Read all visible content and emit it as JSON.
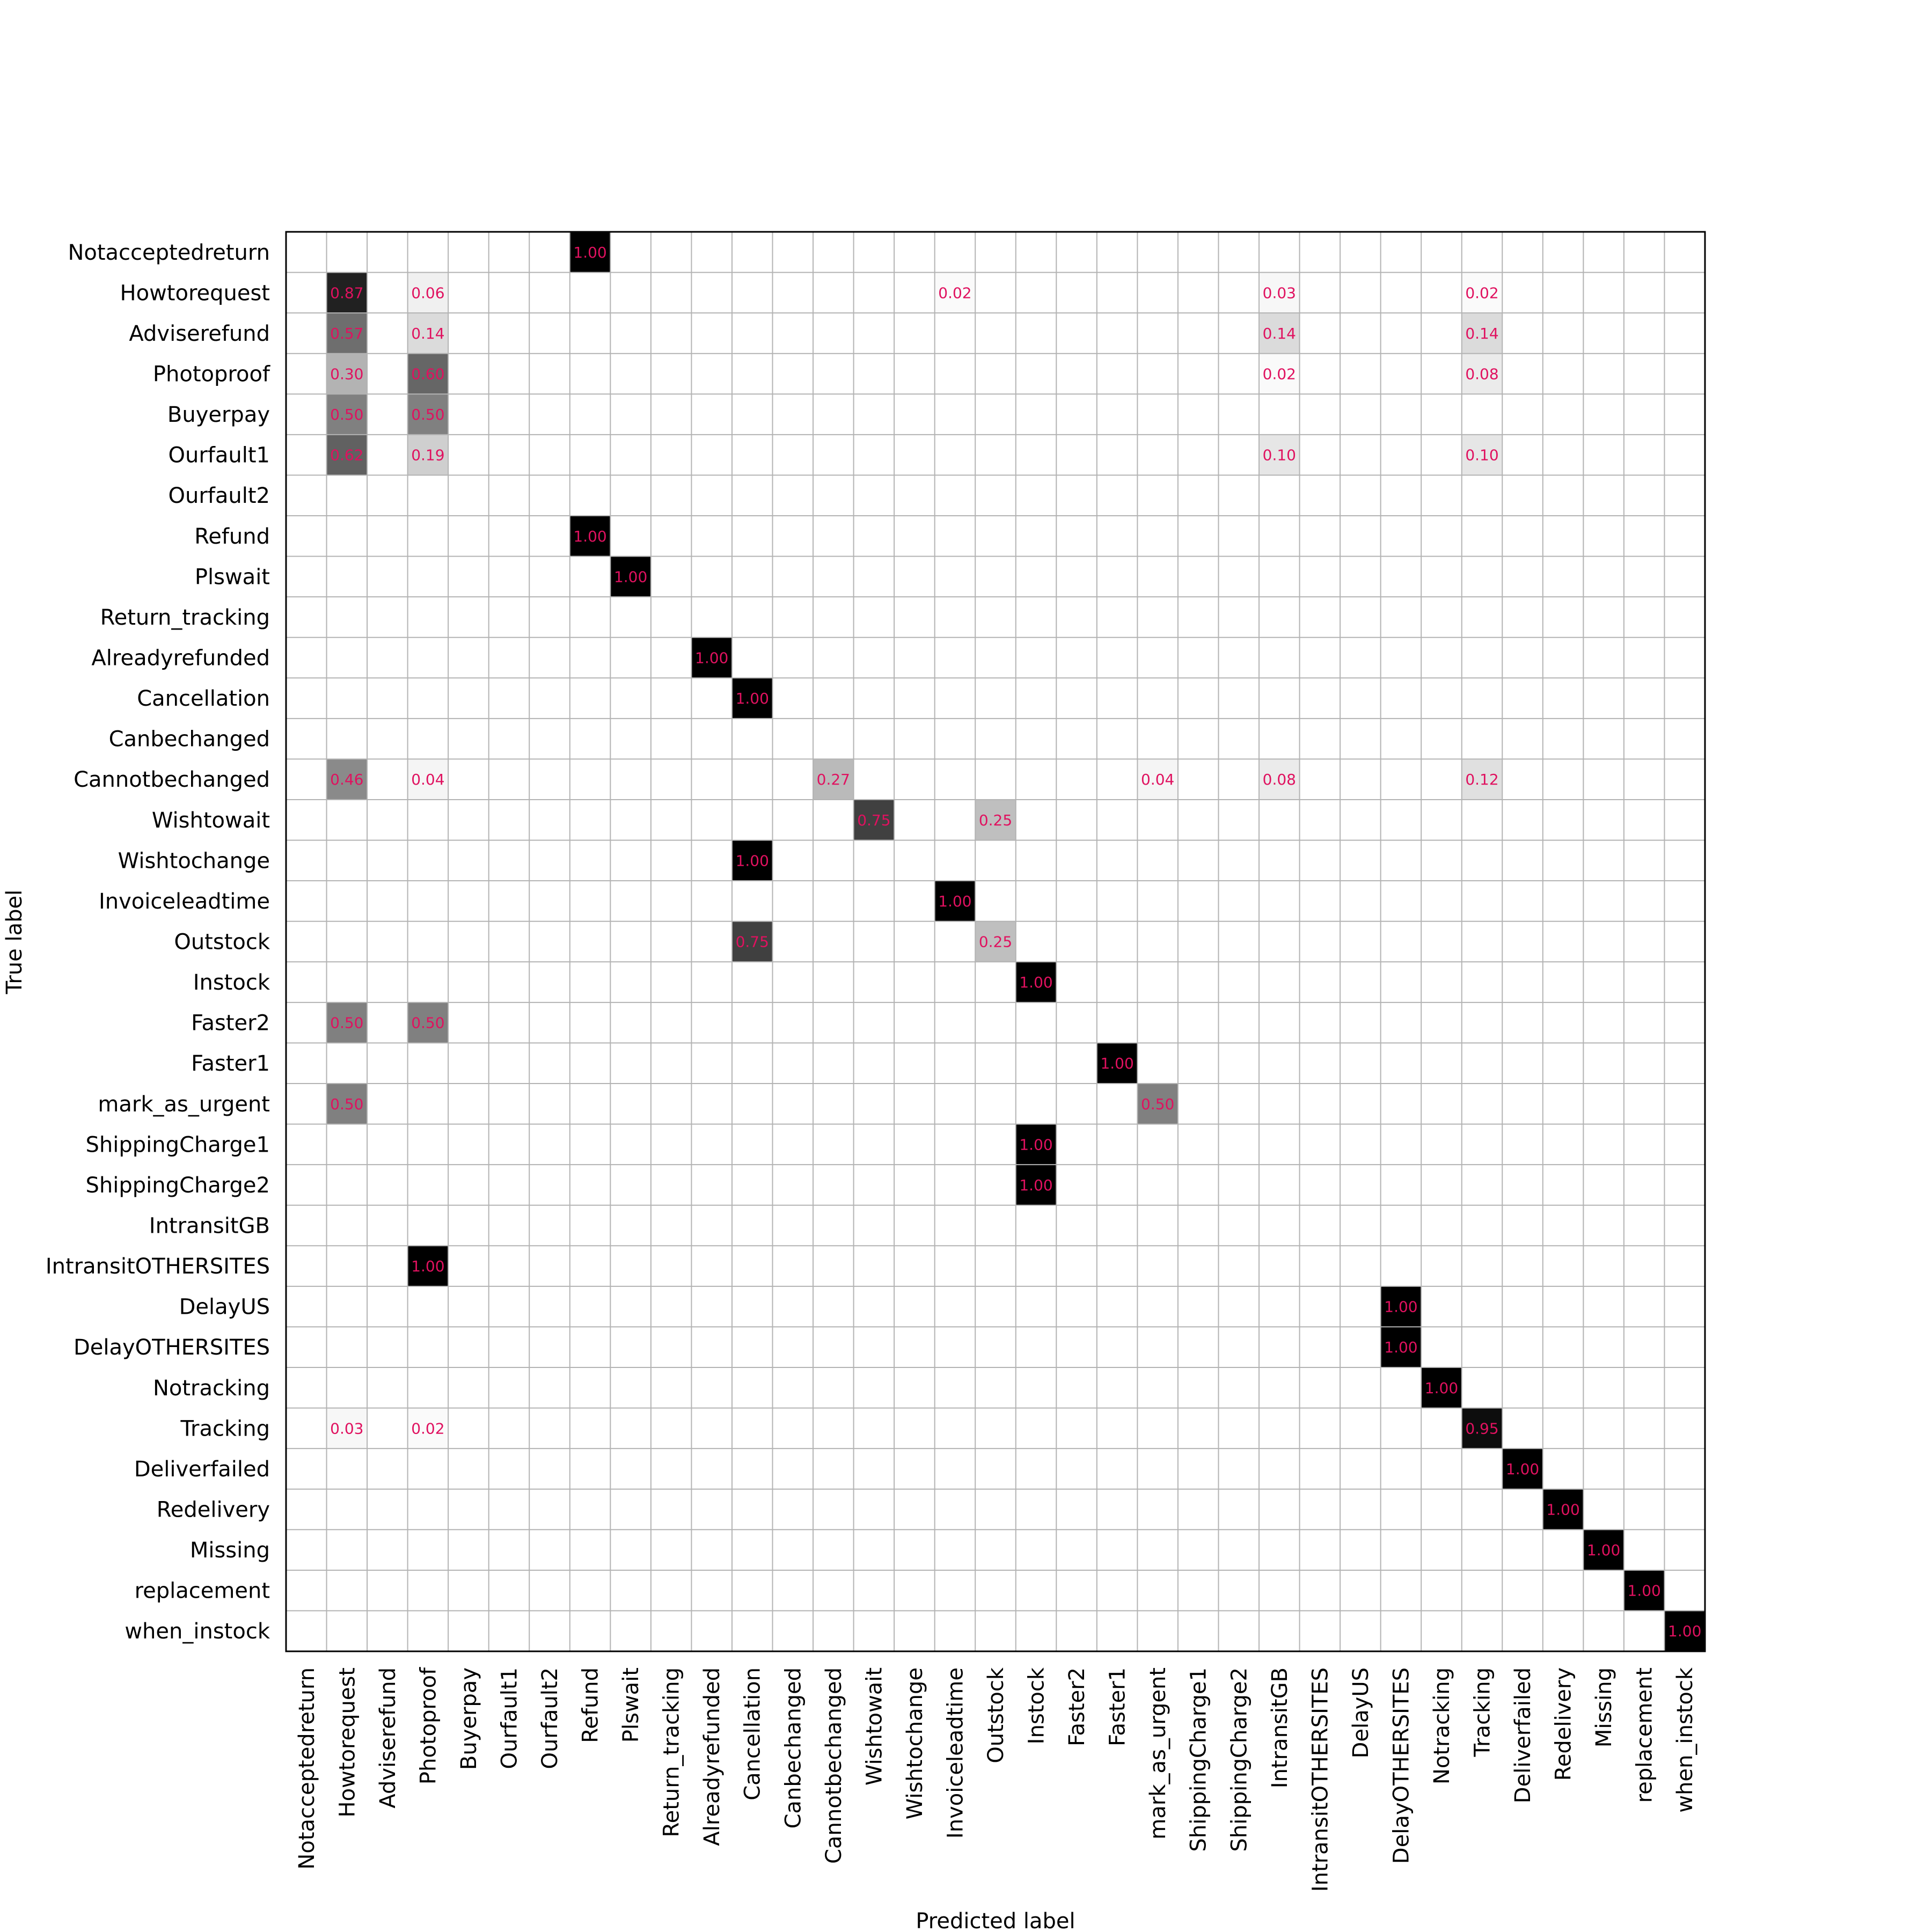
{
  "chart_data": {
    "type": "heatmap",
    "title": "",
    "xlabel": "Predicted label",
    "ylabel": "True label",
    "labels": [
      "Notacceptedreturn",
      "Howtorequest",
      "Adviserefund",
      "Photoproof",
      "Buyerpay",
      "Ourfault1",
      "Ourfault2",
      "Refund",
      "Plswait",
      "Return_tracking",
      "Alreadyrefunded",
      "Cancellation",
      "Canbechanged",
      "Cannotbechanged",
      "Wishtowait",
      "Wishtochange",
      "Invoiceleadtime",
      "Outstock",
      "Instock",
      "Faster2",
      "Faster1",
      "mark_as_urgent",
      "ShippingCharge1",
      "ShippingCharge2",
      "IntransitGB",
      "IntransitOTHERSITES",
      "DelayUS",
      "DelayOTHERSITES",
      "Notracking",
      "Tracking",
      "Deliverfailed",
      "Redelivery",
      "Missing",
      "replacement",
      "when_instock"
    ],
    "value_range": [
      0,
      1
    ],
    "colormap": "gray_reversed",
    "value_text_color": "#e0115f",
    "grid": true,
    "cells": [
      {
        "row": 0,
        "col": 7,
        "value": "1.00"
      },
      {
        "row": 1,
        "col": 1,
        "value": "0.87"
      },
      {
        "row": 1,
        "col": 3,
        "value": "0.06"
      },
      {
        "row": 1,
        "col": 16,
        "value": "0.02"
      },
      {
        "row": 1,
        "col": 24,
        "value": "0.03"
      },
      {
        "row": 1,
        "col": 29,
        "value": "0.02"
      },
      {
        "row": 2,
        "col": 1,
        "value": "0.57"
      },
      {
        "row": 2,
        "col": 3,
        "value": "0.14"
      },
      {
        "row": 2,
        "col": 24,
        "value": "0.14"
      },
      {
        "row": 2,
        "col": 29,
        "value": "0.14"
      },
      {
        "row": 3,
        "col": 1,
        "value": "0.30"
      },
      {
        "row": 3,
        "col": 3,
        "value": "0.60"
      },
      {
        "row": 3,
        "col": 24,
        "value": "0.02"
      },
      {
        "row": 3,
        "col": 29,
        "value": "0.08"
      },
      {
        "row": 4,
        "col": 1,
        "value": "0.50"
      },
      {
        "row": 4,
        "col": 3,
        "value": "0.50"
      },
      {
        "row": 5,
        "col": 1,
        "value": "0.62"
      },
      {
        "row": 5,
        "col": 3,
        "value": "0.19"
      },
      {
        "row": 5,
        "col": 24,
        "value": "0.10"
      },
      {
        "row": 5,
        "col": 29,
        "value": "0.10"
      },
      {
        "row": 7,
        "col": 7,
        "value": "1.00"
      },
      {
        "row": 8,
        "col": 8,
        "value": "1.00"
      },
      {
        "row": 10,
        "col": 10,
        "value": "1.00"
      },
      {
        "row": 11,
        "col": 11,
        "value": "1.00"
      },
      {
        "row": 13,
        "col": 1,
        "value": "0.46"
      },
      {
        "row": 13,
        "col": 3,
        "value": "0.04"
      },
      {
        "row": 13,
        "col": 13,
        "value": "0.27"
      },
      {
        "row": 13,
        "col": 21,
        "value": "0.04"
      },
      {
        "row": 13,
        "col": 24,
        "value": "0.08"
      },
      {
        "row": 13,
        "col": 29,
        "value": "0.12"
      },
      {
        "row": 14,
        "col": 14,
        "value": "0.75"
      },
      {
        "row": 14,
        "col": 17,
        "value": "0.25"
      },
      {
        "row": 15,
        "col": 11,
        "value": "1.00"
      },
      {
        "row": 16,
        "col": 16,
        "value": "1.00"
      },
      {
        "row": 17,
        "col": 11,
        "value": "0.75"
      },
      {
        "row": 17,
        "col": 17,
        "value": "0.25"
      },
      {
        "row": 18,
        "col": 18,
        "value": "1.00"
      },
      {
        "row": 19,
        "col": 1,
        "value": "0.50"
      },
      {
        "row": 19,
        "col": 3,
        "value": "0.50"
      },
      {
        "row": 20,
        "col": 20,
        "value": "1.00"
      },
      {
        "row": 21,
        "col": 1,
        "value": "0.50"
      },
      {
        "row": 21,
        "col": 21,
        "value": "0.50"
      },
      {
        "row": 22,
        "col": 18,
        "value": "1.00"
      },
      {
        "row": 23,
        "col": 18,
        "value": "1.00"
      },
      {
        "row": 25,
        "col": 3,
        "value": "1.00"
      },
      {
        "row": 26,
        "col": 27,
        "value": "1.00"
      },
      {
        "row": 27,
        "col": 27,
        "value": "1.00"
      },
      {
        "row": 28,
        "col": 28,
        "value": "1.00"
      },
      {
        "row": 29,
        "col": 1,
        "value": "0.03"
      },
      {
        "row": 29,
        "col": 3,
        "value": "0.02"
      },
      {
        "row": 29,
        "col": 29,
        "value": "0.95"
      },
      {
        "row": 30,
        "col": 30,
        "value": "1.00"
      },
      {
        "row": 31,
        "col": 31,
        "value": "1.00"
      },
      {
        "row": 32,
        "col": 32,
        "value": "1.00"
      },
      {
        "row": 33,
        "col": 33,
        "value": "1.00"
      },
      {
        "row": 34,
        "col": 34,
        "value": "1.00"
      }
    ]
  }
}
